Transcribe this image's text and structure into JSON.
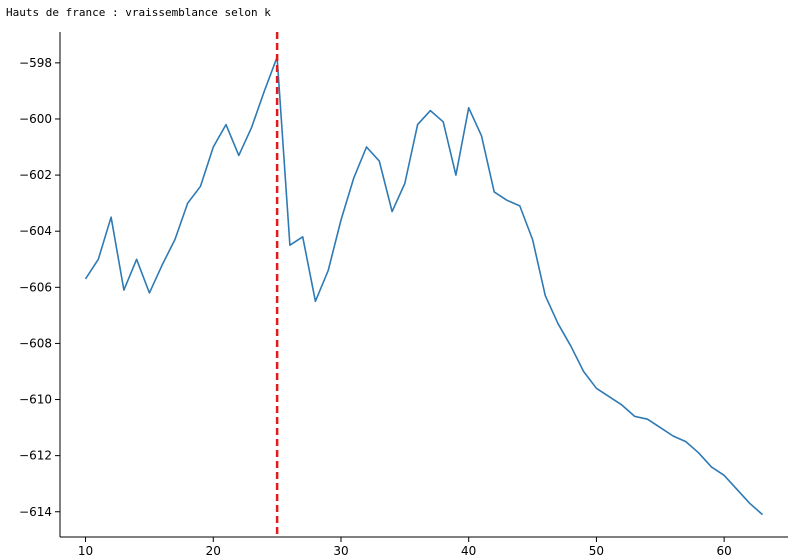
{
  "title": "Hauts de france : vraissemblance selon k",
  "chart_data": {
    "type": "line",
    "title": "Hauts de france : vraissemblance selon k",
    "xlabel": "",
    "ylabel": "",
    "xlim": [
      8,
      65
    ],
    "ylim": [
      -614.9,
      -596.9
    ],
    "xticks": [
      10,
      20,
      30,
      40,
      50,
      60
    ],
    "yticks": [
      -598,
      -600,
      -602,
      -604,
      -606,
      -608,
      -610,
      -612,
      -614
    ],
    "ytick_labels": [
      "−598",
      "−600",
      "−602",
      "−604",
      "−606",
      "−608",
      "−610",
      "−612",
      "−614"
    ],
    "series": [
      {
        "color": "#2e7ab5",
        "x": [
          10,
          11,
          12,
          13,
          14,
          15,
          16,
          17,
          18,
          19,
          20,
          21,
          22,
          23,
          24,
          25,
          26,
          27,
          28,
          29,
          30,
          31,
          32,
          33,
          34,
          35,
          36,
          37,
          38,
          39,
          40,
          41,
          42,
          43,
          44,
          45,
          46,
          47,
          48,
          49,
          50,
          51,
          52,
          53,
          54,
          55,
          56,
          57,
          58,
          59,
          60,
          61,
          62,
          63
        ],
        "y": [
          -605.7,
          -605.0,
          -603.5,
          -606.1,
          -605.0,
          -606.2,
          -605.2,
          -604.3,
          -603.0,
          -602.4,
          -601.0,
          -600.2,
          -601.3,
          -600.3,
          -599.0,
          -597.8,
          -604.5,
          -604.2,
          -606.5,
          -605.4,
          -603.6,
          -602.1,
          -601.0,
          -601.5,
          -603.3,
          -602.3,
          -600.2,
          -599.7,
          -600.1,
          -602.0,
          -599.6,
          -600.6,
          -602.6,
          -602.9,
          -603.1,
          -604.3,
          -606.3,
          -607.3,
          -608.1,
          -609.0,
          -609.6,
          -609.9,
          -610.2,
          -610.6,
          -610.7,
          -611.0,
          -611.3,
          -611.5,
          -611.9,
          -612.4,
          -612.7,
          -613.2,
          -613.7,
          -614.1
        ]
      }
    ],
    "vline": {
      "x": 25,
      "color": "#e31a1c",
      "style": "dashed"
    },
    "grid": false
  }
}
